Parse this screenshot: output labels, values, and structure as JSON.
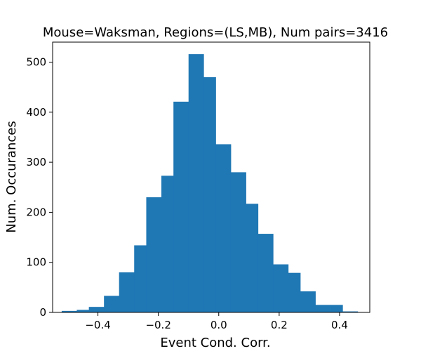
{
  "chart_data": {
    "type": "bar",
    "title": "Mouse=Waksman, Regions=(LS,MB), Num pairs=3416",
    "xlabel": "Event Cond. Corr.",
    "ylabel": "Num. Occurances",
    "xlim": [
      -0.55,
      0.5
    ],
    "ylim": [
      0,
      540
    ],
    "xticks": [
      -0.4,
      -0.2,
      0.0,
      0.2,
      0.4
    ],
    "xtick_labels": [
      "−0.4",
      "−0.2",
      "0.0",
      "0.2",
      "0.4"
    ],
    "yticks": [
      0,
      100,
      200,
      300,
      400,
      500
    ],
    "ytick_labels": [
      "0",
      "100",
      "200",
      "300",
      "400",
      "500"
    ],
    "bin_edges": [
      -0.52,
      -0.47,
      -0.43,
      -0.38,
      -0.33,
      -0.28,
      -0.24,
      -0.19,
      -0.15,
      -0.1,
      -0.05,
      -0.01,
      0.04,
      0.09,
      0.13,
      0.18,
      0.23,
      0.27,
      0.32,
      0.37,
      0.41,
      0.46
    ],
    "counts": [
      3,
      5,
      11,
      33,
      80,
      134,
      230,
      273,
      421,
      516,
      470,
      336,
      280,
      217,
      157,
      96,
      79,
      42,
      15,
      15,
      2
    ],
    "color": "#1f77b4",
    "grid": false
  }
}
